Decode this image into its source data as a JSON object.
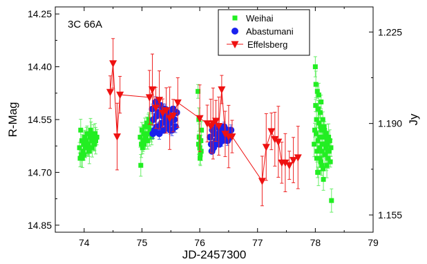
{
  "chart_data": {
    "type": "scatter",
    "annotation": "3C 66A",
    "xlabel": "JD-2457300",
    "ylabel": "R-Mag",
    "y2label": "Jy",
    "xlim": [
      73.5,
      79
    ],
    "ylim": [
      14.87,
      14.23
    ],
    "y_inverted": true,
    "y2lim": [
      1.1484,
      1.2346
    ],
    "x_ticks": [
      74,
      75,
      76,
      77,
      78,
      79
    ],
    "y_ticks": [
      14.25,
      14.4,
      14.55,
      14.7,
      14.85
    ],
    "y_tick_labels": [
      "14.25",
      "14.40",
      "14.55",
      "14.70",
      "14.85"
    ],
    "y2_ticks": [
      1.225,
      1.19,
      1.155
    ],
    "y2_tick_labels": [
      "1.225",
      "1.190",
      "1.155"
    ],
    "grid": false,
    "legend_position": "top-right",
    "series": [
      {
        "name": "Weihai",
        "axis": "left",
        "marker": "square",
        "color": "#22ee22",
        "x": [
          73.92,
          73.93,
          73.95,
          73.96,
          73.98,
          73.99,
          74.01,
          74.02,
          74.04,
          74.05,
          74.07,
          74.08,
          74.1,
          74.11,
          74.13,
          74.14,
          74.16,
          74.17,
          74.19,
          74.2,
          74.22,
          73.94,
          74.0,
          74.06,
          74.12,
          74.18,
          73.97,
          74.09,
          74.15,
          74.97,
          74.99,
          75.0,
          75.02,
          75.03,
          75.05,
          75.06,
          75.08,
          75.09,
          75.11,
          75.12,
          75.14,
          75.15,
          75.17,
          74.98,
          75.04,
          75.1,
          75.16,
          75.01,
          75.07,
          75.13,
          75.97,
          75.98,
          75.99,
          76.0,
          76.01,
          76.02,
          76.03,
          75.985,
          76.005,
          76.025,
          77.98,
          77.99,
          78.0,
          78.01,
          78.02,
          78.03,
          78.04,
          78.05,
          78.06,
          78.07,
          78.08,
          78.09,
          78.1,
          78.11,
          78.12,
          78.13,
          78.14,
          78.15,
          78.16,
          78.17,
          78.18,
          78.19,
          78.2,
          78.21,
          78.22,
          78.23,
          78.24,
          78.25,
          78.26,
          78.27,
          78.28,
          78.005,
          78.015,
          78.025,
          78.035,
          78.045,
          78.055,
          78.065,
          78.075,
          78.085,
          78.095,
          78.105,
          78.115,
          78.125,
          78.135,
          78.145,
          78.155,
          78.165,
          78.175,
          78.185,
          78.195,
          78.205,
          78.215,
          78.225
        ],
        "y": [
          14.63,
          14.66,
          14.65,
          14.61,
          14.64,
          14.62,
          14.6,
          14.63,
          14.61,
          14.59,
          14.62,
          14.64,
          14.6,
          14.58,
          14.61,
          14.63,
          14.6,
          14.62,
          14.59,
          14.61,
          14.6,
          14.58,
          14.65,
          14.63,
          14.59,
          14.62,
          14.66,
          14.64,
          14.61,
          14.6,
          14.62,
          14.58,
          14.61,
          14.59,
          14.57,
          14.6,
          14.56,
          14.59,
          14.57,
          14.55,
          14.58,
          14.56,
          14.6,
          14.68,
          14.62,
          14.61,
          14.58,
          14.63,
          14.6,
          14.59,
          14.47,
          14.62,
          14.6,
          14.63,
          14.65,
          14.61,
          14.58,
          14.55,
          14.66,
          14.64,
          14.62,
          14.58,
          14.4,
          14.45,
          14.55,
          14.64,
          14.7,
          14.52,
          14.48,
          14.6,
          14.66,
          14.57,
          14.5,
          14.68,
          14.62,
          14.55,
          14.72,
          14.6,
          14.58,
          14.65,
          14.63,
          14.59,
          14.68,
          14.62,
          14.66,
          14.6,
          14.64,
          14.61,
          14.67,
          14.63,
          14.78,
          14.51,
          14.59,
          14.66,
          14.47,
          14.61,
          14.7,
          14.56,
          14.63,
          14.53,
          14.67,
          14.58,
          14.64,
          14.6,
          14.69,
          14.57,
          14.62,
          14.65,
          14.59,
          14.63,
          14.68,
          14.61,
          14.64,
          14.6
        ]
      },
      {
        "name": "Abastumani",
        "axis": "left",
        "marker": "circle",
        "color": "#1a22ee",
        "x": [
          75.18,
          75.2,
          75.22,
          75.24,
          75.26,
          75.28,
          75.3,
          75.32,
          75.34,
          75.36,
          75.38,
          75.4,
          75.42,
          75.44,
          75.46,
          75.48,
          75.5,
          75.52,
          75.54,
          75.56,
          75.58,
          75.6,
          75.19,
          75.25,
          75.31,
          75.37,
          75.43,
          75.49,
          75.55,
          76.18,
          76.2,
          76.22,
          76.24,
          76.26,
          76.28,
          76.3,
          76.32,
          76.34,
          76.36,
          76.38,
          76.4,
          76.42,
          76.44,
          76.46,
          76.48,
          76.5,
          76.52,
          76.54,
          76.21,
          76.27,
          76.33,
          76.39,
          76.45,
          76.51
        ],
        "y": [
          14.52,
          14.55,
          14.58,
          14.5,
          14.57,
          14.53,
          14.59,
          14.51,
          14.56,
          14.54,
          14.58,
          14.52,
          14.55,
          14.57,
          14.53,
          14.56,
          14.54,
          14.58,
          14.52,
          14.55,
          14.57,
          14.53,
          14.59,
          14.54,
          14.57,
          14.52,
          14.56,
          14.58,
          14.55,
          14.6,
          14.62,
          14.58,
          14.63,
          14.59,
          14.61,
          14.57,
          14.6,
          14.62,
          14.58,
          14.61,
          14.59,
          14.57,
          14.6,
          14.58,
          14.61,
          14.59,
          14.6,
          14.58,
          14.64,
          14.62,
          14.59,
          14.61,
          14.6,
          14.59
        ]
      },
      {
        "name": "Effelsberg",
        "axis": "right",
        "marker": "triangle-down",
        "color": "#ee1111",
        "x": [
          74.45,
          74.5,
          74.57,
          74.62,
          75.13,
          75.18,
          75.24,
          75.3,
          75.36,
          75.42,
          75.48,
          75.54,
          75.62,
          76.0,
          76.13,
          76.19,
          76.23,
          76.28,
          76.33,
          76.38,
          76.44,
          76.5,
          76.56,
          77.08,
          77.15,
          77.24,
          77.3,
          77.36,
          77.42,
          77.48,
          77.55,
          77.62,
          77.7
        ],
        "y": [
          1.202,
          1.213,
          1.185,
          1.201,
          1.2,
          1.203,
          1.196,
          1.199,
          1.194,
          1.195,
          1.192,
          1.193,
          1.198,
          1.192,
          1.19,
          1.189,
          1.19,
          1.191,
          1.189,
          1.203,
          1.186,
          1.185,
          1.185,
          1.168,
          1.181,
          1.187,
          1.184,
          1.183,
          1.175,
          1.175,
          1.174,
          1.176,
          1.177
        ]
      }
    ]
  }
}
